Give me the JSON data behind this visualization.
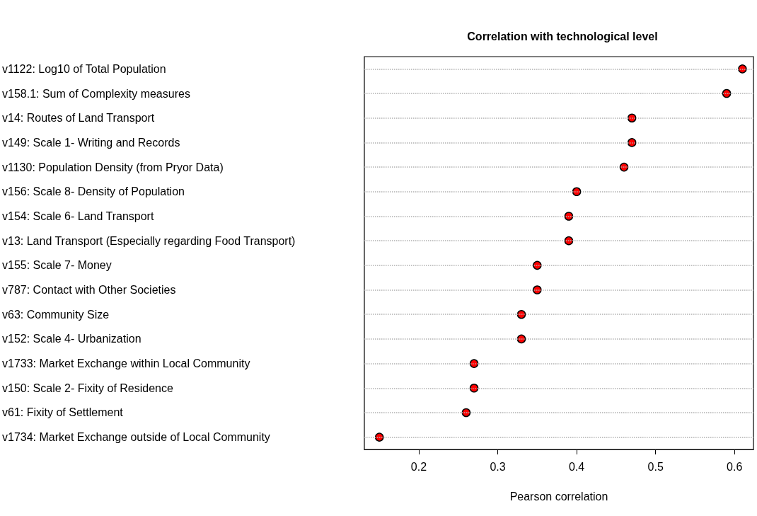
{
  "chart_data": {
    "type": "scatter",
    "title": "Correlation with technological level",
    "xlabel": "Pearson correlation",
    "orientation": "horizontal",
    "categories": [
      "v1122: Log10 of Total Population",
      "v158.1: Sum of Complexity measures",
      "v14: Routes of Land Transport",
      "v149: Scale 1- Writing and Records",
      "v1130: Population Density (from Pryor Data)",
      "v156: Scale 8- Density of Population",
      "v154: Scale 6- Land Transport",
      "v13: Land Transport (Especially regarding Food Transport)",
      "v155: Scale 7- Money",
      "v787: Contact with Other Societies",
      "v63: Community Size",
      "v152: Scale 4- Urbanization",
      "v1733: Market Exchange within Local Community",
      "v150: Scale 2- Fixity of Residence",
      "v61: Fixity of Settlement",
      "v1734: Market Exchange outside of Local Community"
    ],
    "values": [
      0.61,
      0.59,
      0.47,
      0.47,
      0.46,
      0.4,
      0.39,
      0.39,
      0.35,
      0.35,
      0.33,
      0.33,
      0.27,
      0.27,
      0.26,
      0.15
    ],
    "color": "#ff0000",
    "marker": "circle",
    "grid": "y",
    "xlim": [
      0.131,
      0.624
    ],
    "xticks": [
      0.2,
      0.3,
      0.4,
      0.5,
      0.6
    ]
  }
}
